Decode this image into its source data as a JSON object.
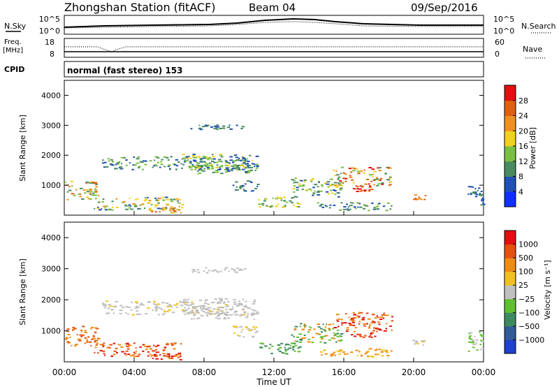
{
  "header": {
    "title": "Zhongshan Station (fitACF)",
    "beam": "Beam 04",
    "date": "09/Sep/2016"
  },
  "top_panels": {
    "nsky_label": "N.Sky",
    "nsearch_label": "N.Search",
    "nsky_ticks": [
      "10^5",
      "10^0"
    ],
    "nsearch_ticks": [
      "10^5",
      "10^0"
    ],
    "freq_label": "Freq.",
    "freq_unit": "[MHz]",
    "freq_ticks": [
      "18",
      "8"
    ],
    "nave_label": "Nave",
    "nave_ticks": [
      "60",
      "0"
    ],
    "cpid_label": "CPID",
    "cpid_text": "normal (fast stereo) 153"
  },
  "chart_data": [
    {
      "type": "heatmap",
      "name": "power",
      "ylabel": "Slant Range [km]",
      "yticks": [
        "1000",
        "2000",
        "3000",
        "4000"
      ],
      "colorbar_label": "Power [dB]",
      "colorbar_ticks": [
        "4",
        "8",
        "12",
        "16",
        "20",
        "24",
        "28"
      ],
      "colors": [
        "#1030ff",
        "#2050b8",
        "#4a8a60",
        "#7ac040",
        "#f0d020",
        "#f09020",
        "#e06010",
        "#e01010"
      ]
    },
    {
      "type": "heatmap",
      "name": "velocity",
      "ylabel": "Slant Range [km]",
      "yticks": [
        "1000",
        "2000",
        "3000",
        "4000"
      ],
      "colorbar_label": "Velocity [m s⁻¹]",
      "colorbar_ticks": [
        "1000",
        "500",
        "100",
        "25",
        "−25",
        "−100",
        "−500",
        "−1000"
      ],
      "colors": [
        "#2040d0",
        "#305a98",
        "#3e8a60",
        "#60c030",
        "#c0c0c0",
        "#f0c020",
        "#f08a10",
        "#e85010",
        "#e01010"
      ]
    }
  ],
  "xaxis": {
    "ticks": [
      "00:00",
      "04:00",
      "08:00",
      "12:00",
      "16:00",
      "20:00",
      "00:00"
    ],
    "label": "Time UT"
  }
}
